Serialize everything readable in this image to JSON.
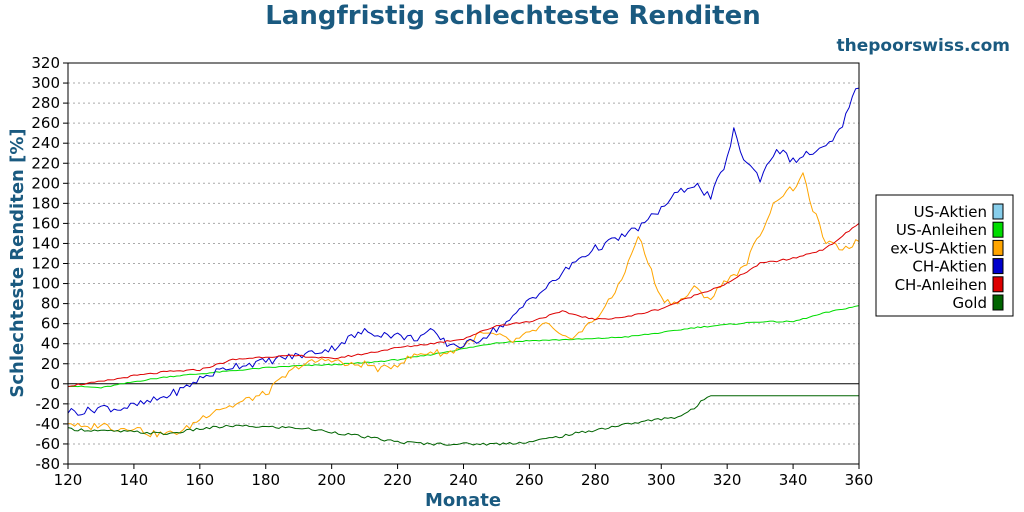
{
  "colors": {
    "heading": "#1a5a80"
  },
  "watermark": "thepoorswiss.com",
  "chart_data": {
    "type": "line",
    "title": "Langfristig schlechteste Renditen",
    "xlabel": "Monate",
    "ylabel": "Schlechteste Renditen [%]",
    "xlim": [
      120,
      360
    ],
    "ylim": [
      -80,
      320
    ],
    "xticks": [
      120,
      140,
      160,
      180,
      200,
      220,
      240,
      260,
      280,
      300,
      320,
      340,
      360
    ],
    "yticks": [
      -80,
      -60,
      -40,
      -20,
      0,
      20,
      40,
      60,
      80,
      100,
      120,
      140,
      160,
      180,
      200,
      220,
      240,
      260,
      280,
      300,
      320
    ],
    "grid": true,
    "legend_position": "right",
    "series": [
      {
        "name": "US-Aktien",
        "color": "#87ceeb",
        "x": [],
        "y": []
      },
      {
        "name": "US-Anleihen",
        "color": "#00dd00",
        "x": [
          120,
          130,
          140,
          150,
          160,
          170,
          180,
          190,
          200,
          210,
          220,
          230,
          240,
          250,
          260,
          270,
          280,
          290,
          300,
          310,
          320,
          330,
          340,
          350,
          360
        ],
        "y": [
          -2,
          -4,
          2,
          7,
          10,
          13,
          16,
          18,
          19,
          21,
          24,
          29,
          35,
          41,
          43,
          44,
          45,
          47,
          51,
          56,
          59,
          62,
          62,
          71,
          78
        ]
      },
      {
        "name": "ex-US-Aktien",
        "color": "#ffa500",
        "x": [
          120,
          125,
          130,
          135,
          140,
          145,
          150,
          155,
          160,
          165,
          170,
          175,
          180,
          185,
          190,
          195,
          200,
          205,
          210,
          215,
          220,
          225,
          230,
          235,
          240,
          245,
          250,
          255,
          260,
          265,
          270,
          275,
          280,
          285,
          290,
          293,
          295,
          300,
          305,
          310,
          315,
          320,
          325,
          330,
          335,
          340,
          343,
          346,
          350,
          355,
          360
        ],
        "y": [
          -38,
          -45,
          -40,
          -45,
          -43,
          -50,
          -50,
          -47,
          -35,
          -25,
          -22,
          -15,
          -10,
          5,
          18,
          22,
          25,
          18,
          20,
          14,
          20,
          28,
          32,
          30,
          38,
          50,
          48,
          42,
          50,
          60,
          45,
          50,
          65,
          85,
          120,
          148,
          130,
          85,
          80,
          95,
          85,
          105,
          115,
          150,
          185,
          195,
          207,
          175,
          140,
          135,
          142
        ]
      },
      {
        "name": "CH-Aktien",
        "color": "#0000cc",
        "x": [
          120,
          125,
          130,
          135,
          140,
          145,
          150,
          155,
          160,
          165,
          170,
          175,
          180,
          185,
          190,
          195,
          200,
          205,
          210,
          215,
          220,
          225,
          230,
          235,
          240,
          245,
          250,
          255,
          260,
          265,
          270,
          275,
          280,
          285,
          290,
          295,
          300,
          305,
          310,
          315,
          320,
          322,
          325,
          330,
          335,
          340,
          345,
          350,
          355,
          358,
          360
        ],
        "y": [
          -27,
          -28,
          -23,
          -25,
          -22,
          -18,
          -12,
          -5,
          5,
          12,
          18,
          20,
          22,
          26,
          28,
          32,
          35,
          45,
          52,
          50,
          48,
          45,
          52,
          40,
          38,
          45,
          55,
          65,
          85,
          95,
          110,
          125,
          135,
          142,
          150,
          160,
          175,
          190,
          200,
          185,
          225,
          252,
          225,
          205,
          235,
          222,
          230,
          235,
          255,
          290,
          295
        ]
      },
      {
        "name": "CH-Anleihen",
        "color": "#dd0000",
        "x": [
          120,
          130,
          140,
          150,
          160,
          170,
          180,
          190,
          200,
          210,
          220,
          230,
          240,
          250,
          260,
          270,
          280,
          290,
          300,
          310,
          320,
          330,
          340,
          350,
          360
        ],
        "y": [
          -2,
          2,
          8,
          12,
          14,
          24,
          27,
          28,
          25,
          30,
          36,
          40,
          45,
          58,
          62,
          72,
          64,
          67,
          75,
          88,
          100,
          120,
          125,
          135,
          160
        ]
      },
      {
        "name": "Gold",
        "color": "#006400",
        "x": [
          120,
          130,
          140,
          150,
          160,
          170,
          180,
          190,
          200,
          210,
          220,
          230,
          240,
          250,
          260,
          270,
          280,
          290,
          300,
          305,
          310,
          313,
          315,
          320,
          330,
          340,
          350,
          360
        ],
        "y": [
          -45,
          -47,
          -48,
          -50,
          -45,
          -42,
          -43,
          -44,
          -48,
          -53,
          -58,
          -60,
          -60,
          -60,
          -58,
          -52,
          -46,
          -40,
          -35,
          -33,
          -25,
          -15,
          -12,
          -12,
          -12,
          -12,
          -12,
          -12
        ]
      }
    ]
  }
}
